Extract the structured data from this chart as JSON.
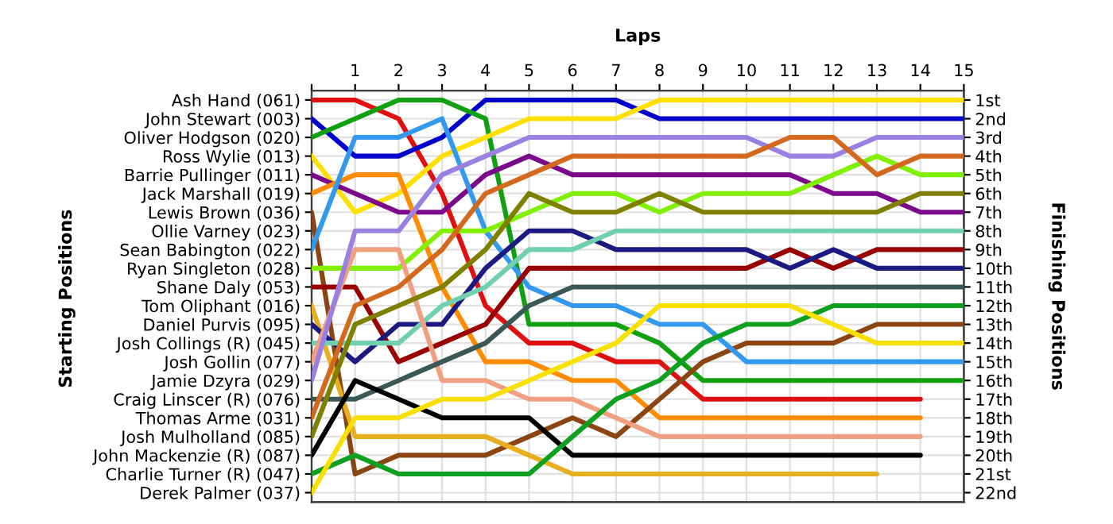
{
  "chart_data": {
    "type": "line",
    "xlabel": "Laps",
    "annotations": [
      "Starting Positions"
    ],
    "y2label": "Finishing Positions",
    "x": [
      0,
      1,
      2,
      3,
      4,
      5,
      6,
      7,
      8,
      9,
      10,
      11,
      12,
      13,
      14,
      15
    ],
    "xlim": [
      0,
      15
    ],
    "xticks": [
      {
        "value": 0,
        "label": null
      },
      1,
      2,
      3,
      4,
      5,
      6,
      7,
      8,
      9,
      10,
      11,
      12,
      13,
      14,
      15
    ],
    "y_categories": [
      "Ash Hand (061)",
      "John Stewart (003)",
      "Oliver Hodgson (020)",
      "Ross Wylie (013)",
      "Barrie Pullinger (011)",
      "Jack Marshall (019)",
      "Lewis Brown (036)",
      "Ollie Varney (023)",
      "Sean Babington (022)",
      "Ryan Singleton (028)",
      "Shane Daly (053)",
      "Tom Oliphant (016)",
      "Daniel Purvis (095)",
      "Josh Collings (R) (045)",
      "Josh Gollin (077)",
      "Jamie Dzyra (029)",
      "Craig Linscer (R) (076)",
      "Thomas Arme (031)",
      "Josh Mulholland (085)",
      "John Mackenzie (R) (087)",
      "Charlie Turner (R) (047)",
      "Derek Palmer (037)"
    ],
    "y2lim": [
      22.5,
      0.5
    ],
    "y2ticks": [
      {
        "value": 1,
        "label": "1st"
      },
      {
        "value": 2,
        "label": "2nd"
      },
      {
        "value": 3,
        "label": "3rd"
      },
      {
        "value": 4,
        "label": "4th"
      },
      {
        "value": 5,
        "label": "5th"
      },
      {
        "value": 6,
        "label": "6th"
      },
      {
        "value": 7,
        "label": "7th"
      },
      {
        "value": 8,
        "label": "8th"
      },
      {
        "value": 9,
        "label": "9th"
      },
      {
        "value": 10,
        "label": "10th"
      },
      {
        "value": 11,
        "label": "11th"
      },
      {
        "value": 12,
        "label": "12th"
      },
      {
        "value": 13,
        "label": "13th"
      },
      {
        "value": 14,
        "label": "14th"
      },
      {
        "value": 15,
        "label": "15th"
      },
      {
        "value": 16,
        "label": "16th"
      },
      {
        "value": 17,
        "label": "17th"
      },
      {
        "value": 18,
        "label": "18th"
      },
      {
        "value": 19,
        "label": "19th"
      },
      {
        "value": 20,
        "label": "20th"
      },
      {
        "value": 21,
        "label": "21st"
      },
      {
        "value": 22,
        "label": "22nd"
      }
    ],
    "grid": true,
    "marker": "none",
    "line_style": "solid",
    "series": [
      {
        "axis": "y2",
        "color": "#e01010",
        "values": [
          1,
          1,
          2,
          6,
          12,
          14,
          14,
          15,
          15,
          17,
          17,
          17,
          17,
          17,
          17,
          null
        ]
      },
      {
        "axis": "y2",
        "color": "#0000cc",
        "values": [
          2,
          4,
          4,
          3,
          1,
          1,
          1,
          1,
          2,
          2,
          2,
          2,
          2,
          2,
          2,
          2
        ]
      },
      {
        "axis": "y2",
        "color": "#10a010",
        "values": [
          3,
          2,
          1,
          1,
          2,
          13,
          13,
          13,
          14,
          16,
          16,
          16,
          16,
          16,
          16,
          16
        ]
      },
      {
        "axis": "y2",
        "color": "#ffe000",
        "values": [
          4,
          7,
          6,
          4,
          3,
          2,
          2,
          2,
          1,
          1,
          1,
          1,
          1,
          1,
          1,
          1
        ]
      },
      {
        "axis": "y2",
        "color": "#7a0a8a",
        "values": [
          5,
          6,
          7,
          7,
          5,
          4,
          5,
          5,
          5,
          5,
          5,
          5,
          6,
          6,
          7,
          7
        ]
      },
      {
        "axis": "y2",
        "color": "#ff8c00",
        "values": [
          6,
          5,
          5,
          11,
          15,
          15,
          16,
          16,
          18,
          18,
          18,
          18,
          18,
          18,
          18,
          null
        ]
      },
      {
        "axis": "y2",
        "color": "#8b4513",
        "values": [
          7,
          21,
          20,
          20,
          20,
          19,
          18,
          19,
          17,
          15,
          14,
          14,
          14,
          13,
          13,
          13
        ]
      },
      {
        "axis": "y2",
        "color": "#3399ee",
        "values": [
          9,
          3,
          3,
          2,
          8,
          11,
          12,
          12,
          13,
          13,
          15,
          15,
          15,
          15,
          15,
          15
        ]
      },
      {
        "axis": "y2",
        "color": "#80f000",
        "values": [
          10,
          10,
          10,
          8,
          8,
          7,
          6,
          6,
          7,
          6,
          6,
          6,
          5,
          4,
          5,
          5
        ]
      },
      {
        "axis": "y2",
        "color": "#990000",
        "values": [
          11,
          11,
          15,
          14,
          13,
          10,
          10,
          10,
          10,
          10,
          10,
          9,
          10,
          9,
          9,
          9
        ]
      },
      {
        "axis": "y2",
        "color": "#e8b020",
        "values": [
          12,
          19,
          19,
          19,
          19,
          20,
          21,
          21,
          21,
          21,
          21,
          21,
          21,
          21,
          null,
          null
        ]
      },
      {
        "axis": "y2",
        "color": "#1a1a80",
        "values": [
          13,
          15,
          13,
          13,
          10,
          8,
          8,
          9,
          9,
          9,
          9,
          10,
          9,
          10,
          10,
          10
        ]
      },
      {
        "axis": "y2",
        "color": "#70d0b0",
        "values": [
          14,
          14,
          14,
          12,
          11,
          9,
          9,
          8,
          8,
          8,
          8,
          8,
          8,
          8,
          8,
          8
        ]
      },
      {
        "axis": "y2",
        "color": "#f0a080",
        "values": [
          15,
          9,
          9,
          16,
          16,
          17,
          17,
          18,
          19,
          19,
          19,
          19,
          19,
          19,
          19,
          null
        ]
      },
      {
        "axis": "y2",
        "color": "#9a80e0",
        "values": [
          16,
          8,
          8,
          5,
          4,
          3,
          3,
          3,
          3,
          3,
          3,
          4,
          4,
          3,
          3,
          3
        ]
      },
      {
        "axis": "y2",
        "color": "#3a5858",
        "values": [
          17,
          17,
          16,
          15,
          14,
          12,
          11,
          11,
          11,
          11,
          11,
          11,
          11,
          11,
          11,
          11
        ]
      },
      {
        "axis": "y2",
        "color": "#d2691e",
        "values": [
          18,
          12,
          11,
          9,
          6,
          5,
          4,
          4,
          4,
          4,
          4,
          3,
          3,
          5,
          4,
          4
        ]
      },
      {
        "axis": "y2",
        "color": "#808000",
        "values": [
          19,
          13,
          12,
          11,
          9,
          6,
          7,
          7,
          6,
          7,
          7,
          7,
          7,
          7,
          6,
          6
        ]
      },
      {
        "axis": "y2",
        "color": "#000000",
        "values": [
          20,
          16,
          17,
          18,
          18,
          18,
          20,
          20,
          20,
          20,
          20,
          20,
          20,
          20,
          20,
          null
        ]
      },
      {
        "axis": "y2",
        "color": "#10a020",
        "values": [
          21,
          20,
          21,
          21,
          21,
          21,
          19,
          17,
          16,
          14,
          13,
          13,
          12,
          12,
          12,
          12
        ]
      },
      {
        "axis": "y2",
        "color": "#f8e000",
        "values": [
          22,
          18,
          18,
          17,
          17,
          16,
          15,
          14,
          12,
          12,
          12,
          12,
          13,
          14,
          14,
          14
        ]
      }
    ]
  }
}
